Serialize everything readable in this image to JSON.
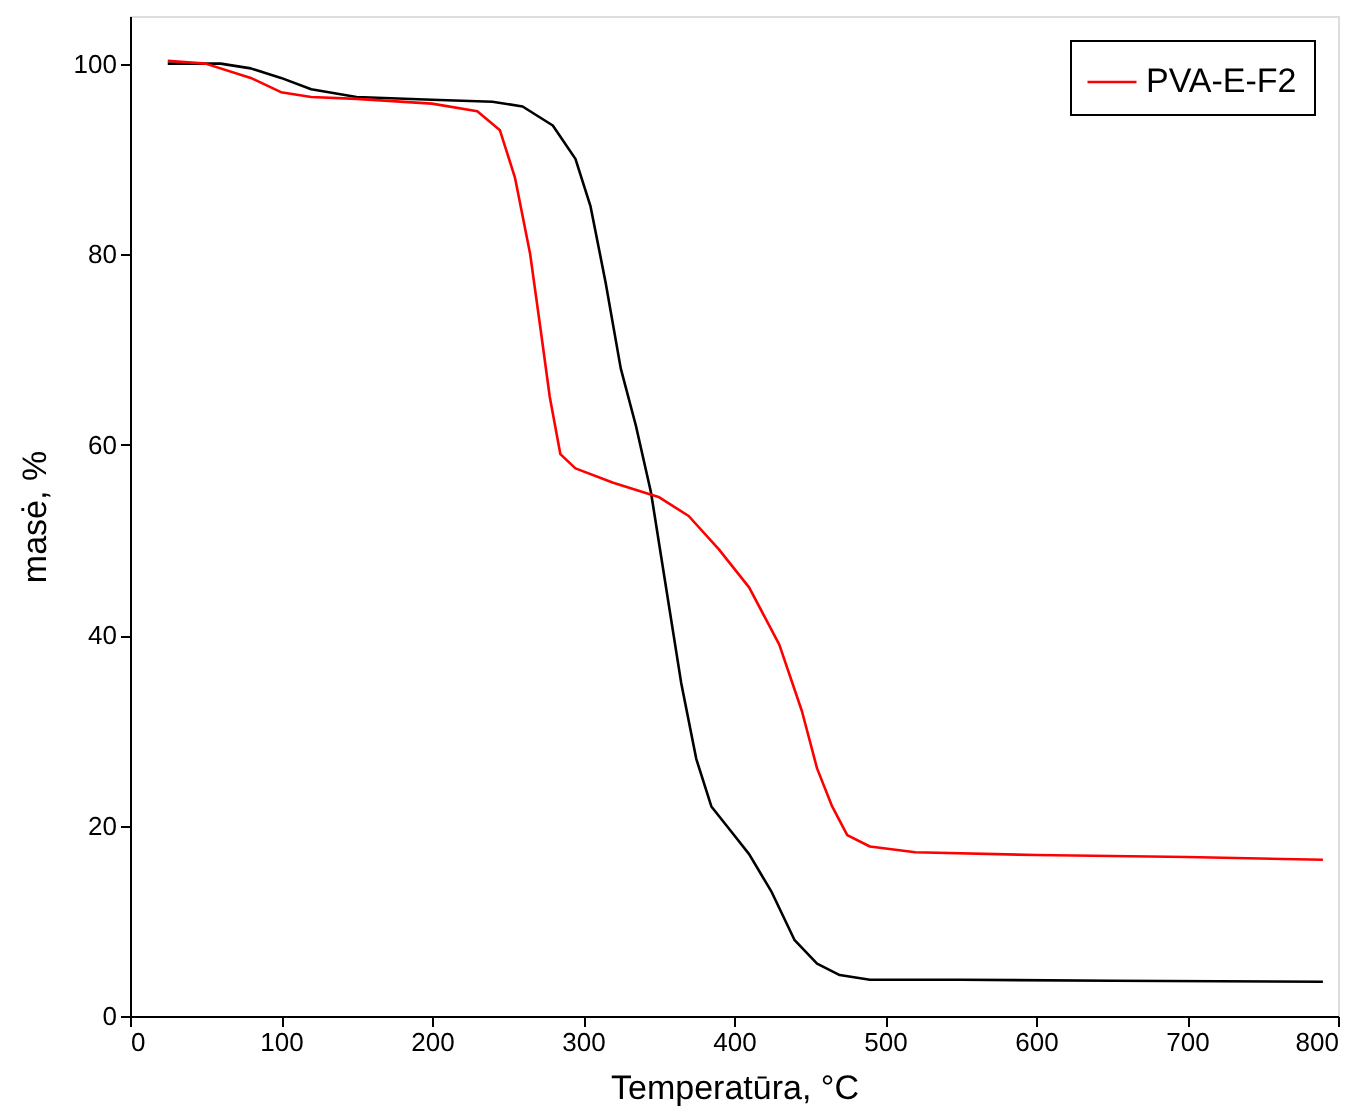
{
  "chart_data": {
    "type": "line",
    "xlabel": "Temperatūra, °C",
    "ylabel": "masė, %",
    "xlim": [
      0,
      800
    ],
    "xticks": [
      0,
      100,
      200,
      300,
      400,
      500,
      600,
      700,
      800
    ],
    "ylim": [
      0,
      105
    ],
    "yticks": [
      0,
      20,
      40,
      60,
      80,
      100
    ],
    "grid": false,
    "legend": "top right",
    "marker": "none",
    "line_style": "solid",
    "series": [
      {
        "color": "#000000",
        "x": [
          25,
          60,
          80,
          100,
          120,
          150,
          200,
          240,
          260,
          280,
          295,
          305,
          315,
          325,
          335,
          345,
          355,
          365,
          375,
          385,
          400,
          410,
          425,
          440,
          455,
          470,
          490,
          550,
          650,
          790
        ],
        "values": [
          100,
          100,
          99.5,
          98.5,
          97.3,
          96.5,
          96.2,
          96,
          95.5,
          93.5,
          90,
          85,
          77,
          68,
          62,
          55,
          45,
          35,
          27,
          22,
          19,
          17,
          13,
          8,
          5.5,
          4.3,
          3.8,
          3.8,
          3.7,
          3.6
        ]
      },
      {
        "name": "PVA-E-F2",
        "color": "#ff0000",
        "x": [
          25,
          50,
          80,
          100,
          120,
          150,
          200,
          230,
          245,
          255,
          265,
          272,
          278,
          285,
          295,
          320,
          350,
          370,
          390,
          410,
          430,
          445,
          455,
          465,
          475,
          490,
          520,
          600,
          700,
          790
        ],
        "values": [
          100.3,
          100,
          98.5,
          97,
          96.5,
          96.3,
          95.8,
          95,
          93,
          88,
          80,
          72,
          65,
          59,
          57.5,
          56,
          54.5,
          52.5,
          49,
          45,
          39,
          32,
          26,
          22,
          19,
          17.8,
          17.2,
          16.9,
          16.7,
          16.4
        ]
      }
    ]
  }
}
